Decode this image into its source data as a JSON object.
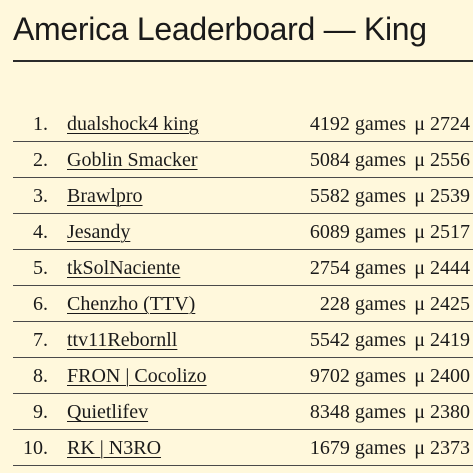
{
  "page": {
    "title": "America Leaderboard — King"
  },
  "leaderboard": {
    "rows": [
      {
        "rank": "1.",
        "player": "dualshock4 king",
        "games": "4192 games",
        "rating": "μ 2724"
      },
      {
        "rank": "2.",
        "player": "Goblin Smacker",
        "games": "5084 games",
        "rating": "μ 2556"
      },
      {
        "rank": "3.",
        "player": "Brawlpro",
        "games": "5582 games",
        "rating": "μ 2539"
      },
      {
        "rank": "4.",
        "player": "Jesandy",
        "games": "6089 games",
        "rating": "μ 2517"
      },
      {
        "rank": "5.",
        "player": "tkSolNaciente",
        "games": "2754 games",
        "rating": "μ 2444"
      },
      {
        "rank": "6.",
        "player": "Chenzho (TTV)",
        "games": "228 games",
        "rating": "μ 2425"
      },
      {
        "rank": "7.",
        "player": "ttv11Rebornll",
        "games": "5542 games",
        "rating": "μ 2419"
      },
      {
        "rank": "8.",
        "player": "FRON | Cocolizo",
        "games": "9702 games",
        "rating": "μ 2400"
      },
      {
        "rank": "9.",
        "player": "Quietlifev",
        "games": "8348 games",
        "rating": "μ 2380"
      },
      {
        "rank": "10.",
        "player": "RK | N3RO",
        "games": "1679 games",
        "rating": "μ 2373"
      }
    ]
  }
}
